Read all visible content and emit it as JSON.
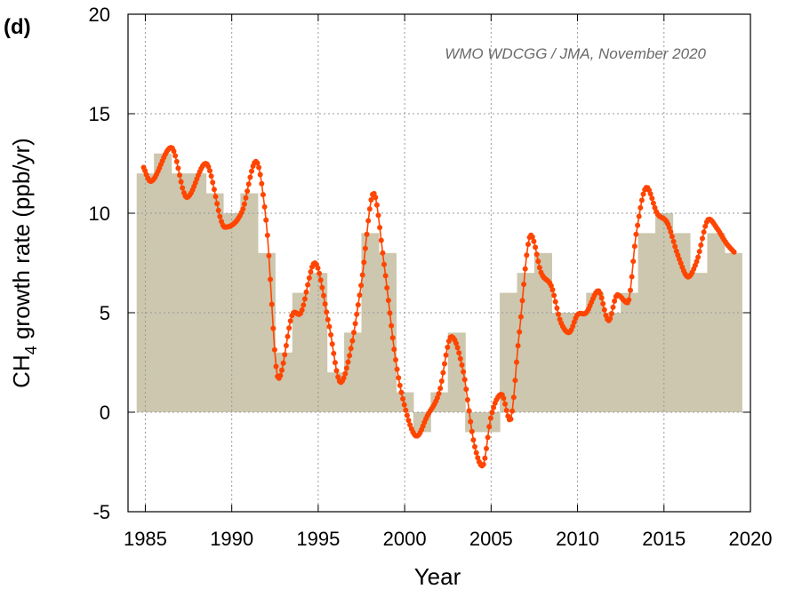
{
  "panel_label": "(d)",
  "source_note": "WMO WDCGG / JMA, November 2020",
  "colors": {
    "bar_fill": "#ccc7ae",
    "line": "#ff4500",
    "grid": "#999999",
    "axis": "#000000"
  },
  "chart_data": {
    "type": "bar+line",
    "xlabel": "Year",
    "ylabel_main": "CH",
    "ylabel_sub": "4",
    "ylabel_rest": " growth rate (ppb/yr)",
    "xlim": [
      1984,
      2020
    ],
    "ylim": [
      -5,
      20
    ],
    "x_ticks": [
      1985,
      1990,
      1995,
      2000,
      2005,
      2010,
      2015,
      2020
    ],
    "y_ticks": [
      -5,
      0,
      5,
      10,
      15,
      20
    ],
    "grid": true,
    "annual_bars": {
      "years": [
        1985,
        1986,
        1987,
        1988,
        1989,
        1990,
        1991,
        1992,
        1993,
        1994,
        1995,
        1996,
        1997,
        1998,
        1999,
        2000,
        2001,
        2002,
        2003,
        2004,
        2005,
        2006,
        2007,
        2008,
        2009,
        2010,
        2011,
        2012,
        2013,
        2014,
        2015,
        2016,
        2017,
        2018,
        2019
      ],
      "values": [
        12,
        13,
        12,
        12,
        11,
        10,
        11,
        8,
        3,
        6,
        7,
        2,
        4,
        9,
        8,
        1,
        -1,
        1,
        4,
        -1,
        -1,
        6,
        7,
        8,
        5,
        5,
        6,
        5,
        6,
        9,
        10,
        9,
        7,
        9,
        8
      ]
    },
    "monthly_series": {
      "knots_x": [
        1984.9,
        1985.3,
        1986.5,
        1987.4,
        1988.5,
        1989.6,
        1990.6,
        1991.4,
        1992.0,
        1992.7,
        1993.5,
        1994.0,
        1994.8,
        1995.6,
        1996.3,
        1996.8,
        1997.5,
        1998.2,
        1998.8,
        1999.5,
        2000.0,
        2000.7,
        2001.3,
        2002.0,
        2002.7,
        2003.4,
        2004.0,
        2004.5,
        2005.0,
        2005.6,
        2006.1,
        2006.6,
        2007.3,
        2007.9,
        2008.5,
        2009.0,
        2009.5,
        2010.0,
        2010.5,
        2011.2,
        2011.8,
        2012.3,
        2012.9,
        2013.4,
        2014.0,
        2014.6,
        2015.2,
        2015.8,
        2016.4,
        2016.9,
        2017.6,
        2018.1,
        2018.6,
        2019.1
      ],
      "knots_y": [
        12.3,
        11.6,
        13.3,
        10.8,
        12.5,
        9.3,
        10.1,
        12.6,
        9.5,
        1.7,
        4.9,
        5.0,
        7.5,
        4.5,
        1.5,
        2.8,
        6.5,
        11.0,
        7.5,
        2.5,
        0.3,
        -1.2,
        -0.2,
        1.0,
        3.8,
        2.0,
        -1.5,
        -2.7,
        -0.2,
        0.9,
        -0.4,
        3.7,
        8.9,
        7.0,
        6.3,
        4.6,
        4.0,
        4.9,
        5.0,
        6.1,
        4.6,
        5.9,
        5.5,
        9.0,
        11.3,
        10.0,
        9.5,
        7.9,
        6.8,
        7.6,
        9.7,
        9.2,
        8.5,
        8.0
      ],
      "step_years": 0.0833
    }
  }
}
